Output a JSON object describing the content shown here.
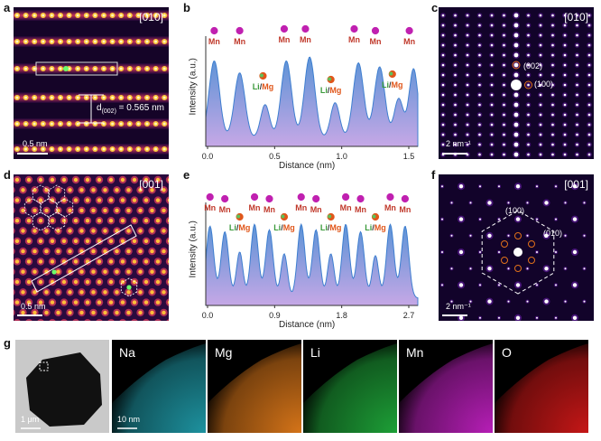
{
  "panels": {
    "a": {
      "letter": "a",
      "zone": "[010]",
      "d_label": "d",
      "d_sub": "(002)",
      "d_value": " = 0.565 nm",
      "scalebar": "0.5 nm"
    },
    "b": {
      "letter": "b",
      "ylabel": "Intensity (a.u.)",
      "xlabel": "Distance (nm)",
      "ticks": [
        "0.0",
        "0.5",
        "1.0",
        "1.5"
      ],
      "atom_mn": "Mn",
      "atom_li": "Li",
      "atom_slash": "/",
      "atom_mg": "Mg"
    },
    "c": {
      "letter": "c",
      "zone": "[010]",
      "spot1": "(002)",
      "spot2": "(100)",
      "scalebar": "2 nm⁻¹"
    },
    "d": {
      "letter": "d",
      "zone": "[001]",
      "scalebar": "0.5 nm"
    },
    "e": {
      "letter": "e",
      "ylabel": "Intensity (a.u.)",
      "xlabel": "Distance (nm)",
      "ticks": [
        "0.0",
        "0.9",
        "1.8",
        "2.7"
      ],
      "atom_mn": "Mn",
      "atom_li": "Li",
      "atom_slash": "/",
      "atom_mg": "Mg"
    },
    "f": {
      "letter": "f",
      "zone": "[001]",
      "spot1": "(100)",
      "spot2": "(010)",
      "scalebar": "2 nm⁻¹"
    },
    "g": {
      "letter": "g",
      "scalebar_tem": "1 μm",
      "scalebar_map": "10 nm",
      "maps": [
        {
          "label": "Na",
          "color": "#1f9aa8"
        },
        {
          "label": "Mg",
          "color": "#e07a1a"
        },
        {
          "label": "Li",
          "color": "#1fa83a"
        },
        {
          "label": "Mn",
          "color": "#c020c0"
        },
        {
          "label": "O",
          "color": "#d01818"
        }
      ]
    }
  },
  "colors": {
    "profile_fill_top": "#5b93d6",
    "profile_fill_bottom": "#c6a8e6",
    "mn": "#c020b0",
    "li": "#3a9a3a",
    "mg": "#e0561a",
    "stem_bg": "#2a0a4a"
  }
}
